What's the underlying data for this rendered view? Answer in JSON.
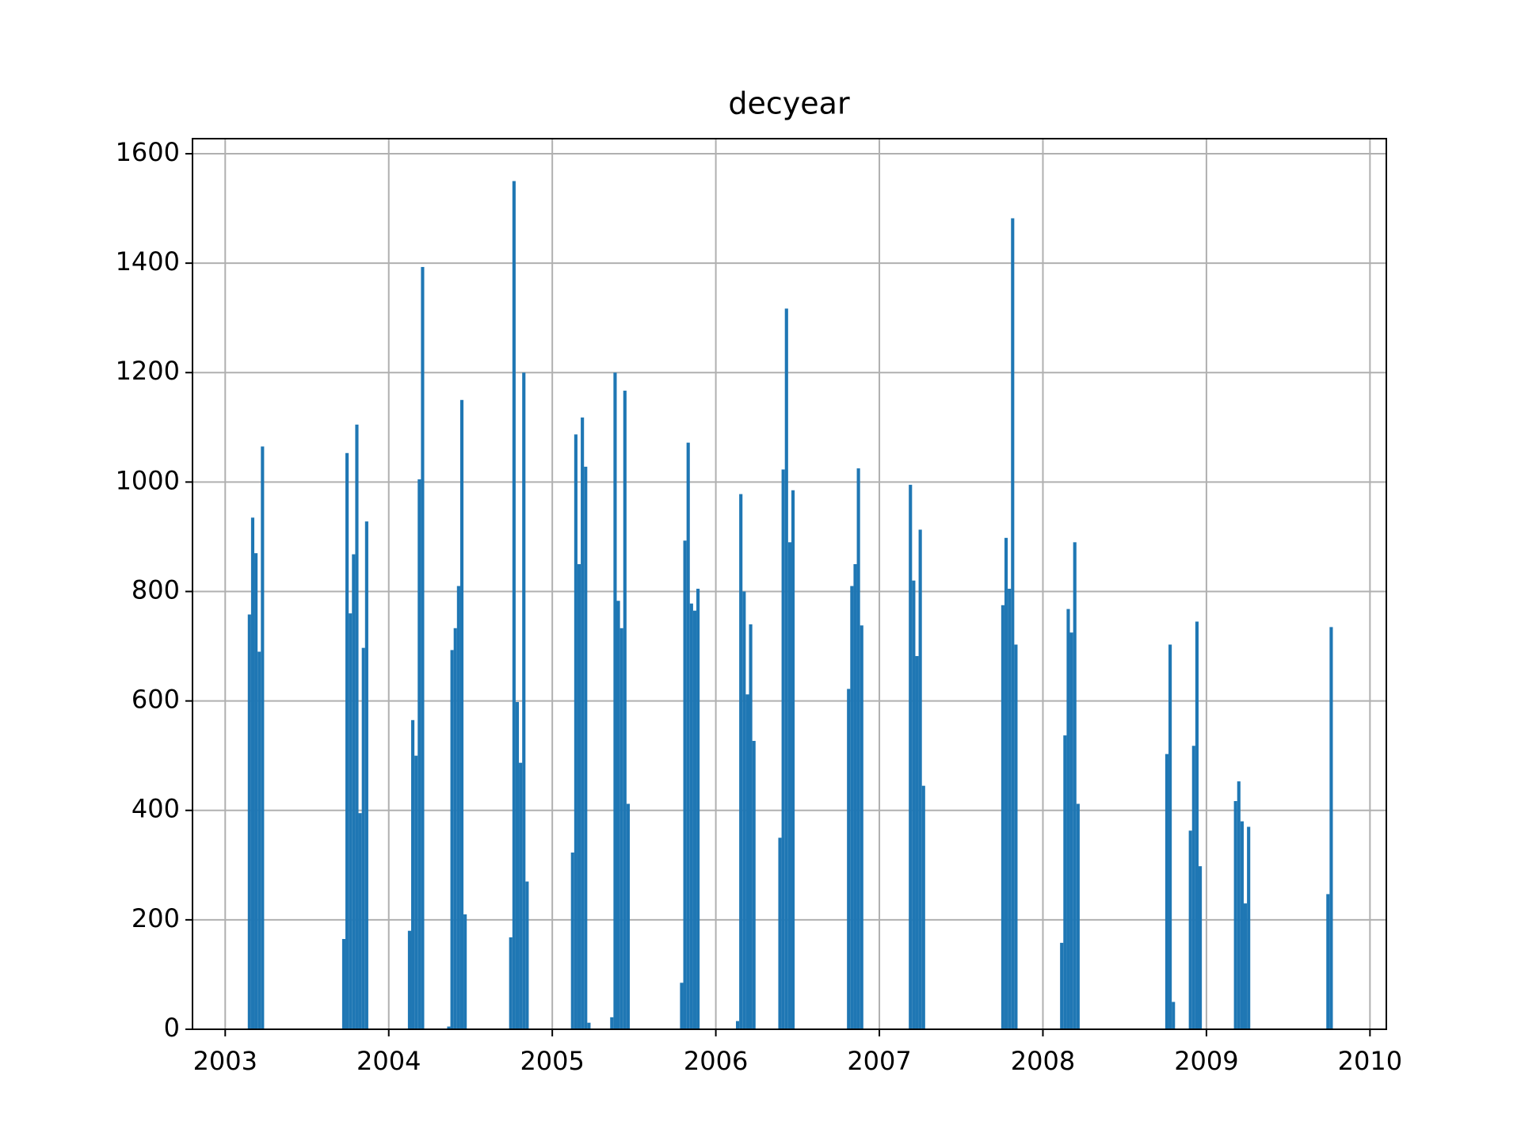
{
  "chart_data": {
    "type": "histogram",
    "title": "decyear",
    "color": "#1f77b4",
    "grid": true,
    "xlim": [
      2002.8,
      2010.1
    ],
    "ylim": [
      0,
      1627.5
    ],
    "xticks": [
      2003,
      2004,
      2005,
      2006,
      2007,
      2008,
      2009,
      2010
    ],
    "yticks": [
      0,
      200,
      400,
      600,
      800,
      1000,
      1200,
      1400,
      1600
    ],
    "bins": [
      2003.138,
      2003.158,
      2003.178,
      2003.198,
      2003.218,
      2003.238,
      2003.715,
      2003.735,
      2003.755,
      2003.775,
      2003.795,
      2003.815,
      2003.835,
      2003.855,
      2003.875,
      2004.117,
      2004.137,
      2004.157,
      2004.177,
      2004.197,
      2004.217,
      2004.357,
      2004.377,
      2004.397,
      2004.417,
      2004.437,
      2004.457,
      2004.477,
      2004.736,
      2004.756,
      2004.776,
      2004.796,
      2004.816,
      2004.836,
      2004.856,
      2005.114,
      2005.134,
      2005.154,
      2005.174,
      2005.194,
      2005.214,
      2005.234,
      2005.354,
      2005.374,
      2005.394,
      2005.414,
      2005.434,
      2005.454,
      2005.474,
      2005.781,
      2005.801,
      2005.821,
      2005.841,
      2005.861,
      2005.881,
      2005.901,
      2006.123,
      2006.143,
      2006.163,
      2006.183,
      2006.203,
      2006.223,
      2006.243,
      2006.382,
      2006.402,
      2006.422,
      2006.442,
      2006.462,
      2006.482,
      2006.802,
      2006.822,
      2006.842,
      2006.862,
      2006.882,
      2006.902,
      2007.18,
      2007.2,
      2007.22,
      2007.24,
      2007.26,
      2007.28,
      2007.745,
      2007.765,
      2007.785,
      2007.805,
      2007.825,
      2007.845,
      2008.105,
      2008.125,
      2008.145,
      2008.165,
      2008.185,
      2008.205,
      2008.225,
      2008.748,
      2008.768,
      2008.788,
      2008.808,
      2008.892,
      2008.912,
      2008.932,
      2008.952,
      2008.972,
      2009.168,
      2009.188,
      2009.208,
      2009.228,
      2009.248,
      2009.268,
      2009.733,
      2009.753,
      2009.773
    ],
    "counts": [
      758,
      935,
      870,
      690,
      1065,
      0,
      165,
      1053,
      760,
      868,
      1105,
      395,
      697,
      928,
      0,
      180,
      565,
      500,
      1005,
      1393,
      0,
      5,
      693,
      733,
      810,
      1150,
      210,
      0,
      168,
      1550,
      598,
      487,
      1200,
      270,
      0,
      323,
      1087,
      850,
      1118,
      1028,
      12,
      0,
      22,
      1200,
      783,
      733,
      1167,
      412,
      0,
      85,
      893,
      1072,
      778,
      765,
      805,
      0,
      15,
      978,
      800,
      612,
      740,
      527,
      0,
      350,
      1023,
      1317,
      890,
      985,
      0,
      622,
      810,
      850,
      1025,
      738,
      0,
      995,
      820,
      682,
      913,
      445,
      0,
      775,
      898,
      805,
      1482,
      703,
      0,
      158,
      537,
      768,
      725,
      890,
      412,
      0,
      503,
      703,
      50,
      0,
      363,
      518,
      745,
      298,
      0,
      417,
      453,
      380,
      230,
      370,
      0,
      247,
      735
    ]
  }
}
